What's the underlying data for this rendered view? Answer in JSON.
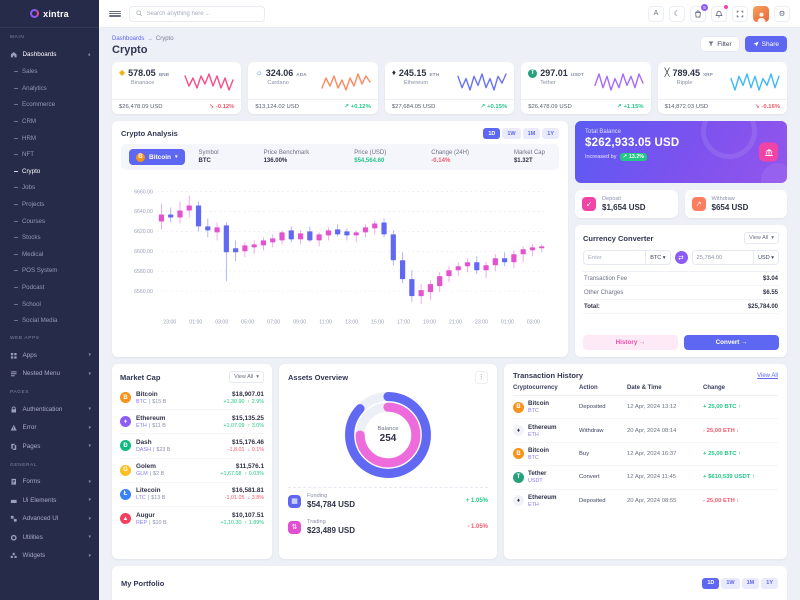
{
  "app": {
    "logo": "xintra",
    "search_placeholder": "Search anything here ...",
    "cart_badge": "5"
  },
  "page": {
    "breadcrumb": [
      "Dashboards",
      "Crypto"
    ],
    "title": "Crypto",
    "filter_label": "Filter",
    "share_label": "Share"
  },
  "sidebar": {
    "sections": [
      {
        "label": "MAIN",
        "items": [
          {
            "label": "Dashboards",
            "icon": "home-icon",
            "expanded": true,
            "active": true,
            "active_child": "Crypto",
            "children": [
              "Sales",
              "Analytics",
              "Ecommerce",
              "CRM",
              "HRM",
              "NFT",
              "Crypto",
              "Jobs",
              "Projects",
              "Courses",
              "Stocks",
              "Medical",
              "POS System",
              "Podcast",
              "School",
              "Social Media"
            ]
          }
        ]
      },
      {
        "label": "WEB APPS",
        "items": [
          {
            "label": "Apps",
            "icon": "apps-grid-icon"
          },
          {
            "label": "Nested Menu",
            "icon": "nested-menu-icon"
          }
        ]
      },
      {
        "label": "PAGES",
        "items": [
          {
            "label": "Authentication",
            "icon": "lock-icon"
          },
          {
            "label": "Error",
            "icon": "warning-icon"
          },
          {
            "label": "Pages",
            "icon": "pages-icon"
          }
        ]
      },
      {
        "label": "GENERAL",
        "items": [
          {
            "label": "Forms",
            "icon": "form-icon"
          },
          {
            "label": "Ui Elements",
            "icon": "ui-elements-icon"
          },
          {
            "label": "Advanced UI",
            "icon": "advanced-ui-icon"
          },
          {
            "label": "Utilities",
            "icon": "utilities-icon"
          },
          {
            "label": "Widgets",
            "icon": "widgets-icon"
          }
        ]
      }
    ]
  },
  "stat_cards": [
    {
      "value": "578.05",
      "symbol": "BNB",
      "name": "Binanace",
      "usd": "$26,478.09 USD",
      "change": "-0.12%",
      "dir": "down",
      "icon_glyph": "◆",
      "icon_color": "#f0b40f",
      "spark_color": "#f54f88",
      "spark": [
        9,
        4,
        8,
        3,
        9,
        5,
        10,
        4,
        9,
        3,
        8,
        2,
        7
      ]
    },
    {
      "value": "324.06",
      "symbol": "ADA",
      "name": "Cardano",
      "usd": "$13,124.02 USD",
      "change": "+0.12%",
      "dir": "up",
      "icon_glyph": "☼",
      "icon_color": "#3a6ff0",
      "spark_color": "#fd8a5f",
      "spark": [
        3,
        8,
        4,
        9,
        3,
        7,
        2,
        8,
        4,
        10,
        5,
        9,
        6
      ]
    },
    {
      "value": "245.15",
      "symbol": "ETH",
      "name": "Ethereum",
      "usd": "$27,684.05 USD",
      "change": "+0.15%",
      "dir": "up",
      "icon_glyph": "♦",
      "icon_color": "#2c2c35",
      "spark_color": "#6973f4",
      "spark": [
        8,
        3,
        7,
        2,
        8,
        4,
        9,
        3,
        7,
        2,
        8,
        5,
        9
      ]
    },
    {
      "value": "297.01",
      "symbol": "USDT",
      "name": "Tether",
      "usd": "$26,478.09 USD",
      "change": "+1.15%",
      "dir": "up",
      "icon_glyph": "T",
      "icon_color": "#ffffff",
      "icon_bg": "#26a17b",
      "spark_color": "#a56bf8",
      "spark": [
        4,
        9,
        3,
        8,
        2,
        7,
        3,
        9,
        4,
        8,
        3,
        9,
        5
      ]
    },
    {
      "value": "789.45",
      "symbol": "XRP",
      "name": "Ripple",
      "usd": "$14,872.03 USD",
      "change": "-0.16%",
      "dir": "down",
      "icon_glyph": "╳",
      "icon_color": "#23292f",
      "spark_color": "#3eb9f6",
      "spark": [
        7,
        2,
        8,
        4,
        9,
        3,
        8,
        2,
        7,
        4,
        9,
        3,
        8
      ]
    }
  ],
  "analysis": {
    "title": "Crypto Analysis",
    "coin": "Bitcoin",
    "coin_glyph": "B",
    "periods": [
      "1D",
      "1W",
      "1M",
      "1Y"
    ],
    "active_period": "1D",
    "stats": [
      {
        "label": "Symbol",
        "value": "BTC"
      },
      {
        "label": "Price Benchmark",
        "value": "136.00%"
      },
      {
        "label": "Price (USD)",
        "value": "$54,564.60",
        "color": "green"
      },
      {
        "label": "Change (24H)",
        "value": "-0.14%",
        "color": "red"
      },
      {
        "label": "Market Cap",
        "value": "$1.32T"
      }
    ]
  },
  "balance": {
    "label": "Total Balance",
    "value": "$262,933.05 USD",
    "increase_label": "Increased by",
    "increase_badge": "13.2%"
  },
  "deposit": {
    "label": "Deposit",
    "value": "$1,654 USD",
    "icon_glyph": "↙"
  },
  "withdraw": {
    "label": "Withdraw",
    "value": "$654 USD",
    "icon_glyph": "↗"
  },
  "converter": {
    "title": "Currency Converter",
    "view_all": "View All",
    "from_placeholder": "Enter",
    "from_currency": "BTC",
    "to_value": "25,784.00",
    "to_currency": "USD",
    "swap_glyph": "⇄",
    "fees": [
      {
        "label": "Transaction Fee",
        "value": "$3.04"
      },
      {
        "label": "Other Charges",
        "value": "$6.55"
      },
      {
        "label": "Total:",
        "value": "$25,784.00",
        "bold": true
      }
    ],
    "history_label": "History",
    "convert_label": "Convert"
  },
  "market_cap": {
    "title": "Market Cap",
    "view_all": "View All",
    "rows": [
      {
        "name": "Bitcoin",
        "symbol": "BTC",
        "cap": "$15 B",
        "value": "$18,907.01",
        "delta": "+1,30.90",
        "pct": "2.9%",
        "dir": "up",
        "icon_glyph": "B",
        "icon_bg": "#f7931a"
      },
      {
        "name": "Ethereum",
        "symbol": "ETH",
        "cap": "$11 B",
        "value": "$15,135.25",
        "delta": "+1,07.09",
        "pct": "3.0%",
        "dir": "up",
        "icon_glyph": "♦",
        "icon_bg": "#8b5cf6"
      },
      {
        "name": "Dash",
        "symbol": "DASH",
        "cap": "$23 B",
        "value": "$15,176.46",
        "delta": "-1,8.01",
        "pct": "0.1%",
        "dir": "down",
        "icon_glyph": "Ð",
        "icon_bg": "#10b981"
      },
      {
        "name": "Golem",
        "symbol": "GLM",
        "cap": "$2 B",
        "value": "$11,576.1",
        "delta": "+1,67.08",
        "pct": "0.03%",
        "dir": "up",
        "icon_glyph": "G",
        "icon_bg": "#fbbf24"
      },
      {
        "name": "Litecoin",
        "symbol": "LTC",
        "cap": "$13 B",
        "value": "$16,581.81",
        "delta": "-1,01.05",
        "pct": "3.8%",
        "dir": "down",
        "icon_glyph": "Ł",
        "icon_bg": "#3b82f6"
      },
      {
        "name": "Augur",
        "symbol": "REP",
        "cap": "$10 B",
        "value": "$10,107.51",
        "delta": "+1,10.30",
        "pct": "1.89%",
        "dir": "up",
        "icon_glyph": "▲",
        "icon_bg": "#f43f5e"
      }
    ]
  },
  "assets_overview": {
    "title": "Assets Overview",
    "rows": [
      {
        "label": "Funding",
        "value": "$54,784 USD",
        "change": "+ 1.05%",
        "dir": "up",
        "icon_glyph": "▦",
        "icon_bg": "#5e67f1"
      },
      {
        "label": "Trading",
        "value": "$23,489 USD",
        "change": "- 1.05%",
        "dir": "down",
        "icon_glyph": "⇅",
        "icon_bg": "#e24fd0"
      }
    ]
  },
  "transactions": {
    "title": "Transaction History",
    "view_all": "View All",
    "columns": [
      "Cryptocurrency",
      "Action",
      "Date & Time",
      "Change"
    ],
    "rows": [
      {
        "name": "Bitcoin",
        "symbol": "BTC",
        "action": "Deposited",
        "datetime": "12 Apr, 2024 13:12",
        "change": "+ 25,00 BTC",
        "dir": "up",
        "icon_glyph": "B",
        "icon_bg": "#f7931a"
      },
      {
        "name": "Ethereum",
        "symbol": "ETH",
        "action": "Withdraw",
        "datetime": "20 Apr, 2024 08:14",
        "change": "- 25,00 ETH",
        "dir": "down",
        "icon_glyph": "♦",
        "icon_bg": "#f1f2f8",
        "icon_color": "#2f3247"
      },
      {
        "name": "Bitcoin",
        "symbol": "BTC",
        "action": "Buy",
        "datetime": "12 Apr, 2024 16:37",
        "change": "+ 25,00 BTC",
        "dir": "up",
        "icon_glyph": "B",
        "icon_bg": "#f7931a"
      },
      {
        "name": "Tether",
        "symbol": "USDT",
        "action": "Convert",
        "datetime": "12 Apr, 2024 11:45",
        "change": "+ $610,539 USDT",
        "dir": "up",
        "icon_glyph": "T",
        "icon_bg": "#26a17b"
      },
      {
        "name": "Ethereum",
        "symbol": "ETH",
        "action": "Deposited",
        "datetime": "20 Apr, 2024 08:55",
        "change": "- 25,00 ETH",
        "dir": "down",
        "icon_glyph": "♦",
        "icon_bg": "#f1f2f8",
        "icon_color": "#2f3247"
      }
    ]
  },
  "portfolio": {
    "title": "My Portfolio"
  },
  "chart_data": [
    {
      "type": "candlestick",
      "title": "Crypto Analysis",
      "x_ticks": [
        "23:00",
        "01:00",
        "03:00",
        "05:00",
        "07:00",
        "09:00",
        "11:00",
        "13:00",
        "15:00",
        "17:00",
        "19:00",
        "21:00",
        "23:00",
        "01:00",
        "03:00"
      ],
      "y_ticks": [
        "6660.00",
        "6640.00",
        "6620.00",
        "6600.00",
        "6580.00",
        "6560.00"
      ],
      "ylim": [
        6542,
        6668
      ],
      "up_color": "#e352cf",
      "down_color": "#6168f1",
      "ohlc": [
        [
          6630,
          6648,
          6622,
          6637
        ],
        [
          6637,
          6644,
          6629,
          6634
        ],
        [
          6634,
          6650,
          6628,
          6641
        ],
        [
          6641,
          6656,
          6634,
          6646
        ],
        [
          6646,
          6650,
          6620,
          6625
        ],
        [
          6625,
          6633,
          6614,
          6621
        ],
        [
          6619,
          6629,
          6611,
          6624
        ],
        [
          6626,
          6629,
          6570,
          6599
        ],
        [
          6603,
          6611,
          6590,
          6599
        ],
        [
          6600,
          6609,
          6594,
          6606
        ],
        [
          6604,
          6611,
          6597,
          6607
        ],
        [
          6606,
          6614,
          6601,
          6611
        ],
        [
          6609,
          6617,
          6604,
          6613
        ],
        [
          6611,
          6621,
          6607,
          6619
        ],
        [
          6621,
          6625,
          6609,
          6612
        ],
        [
          6612,
          6621,
          6607,
          6618
        ],
        [
          6620,
          6625,
          6609,
          6611
        ],
        [
          6611,
          6619,
          6605,
          6617
        ],
        [
          6616,
          6624,
          6611,
          6621
        ],
        [
          6622,
          6627,
          6615,
          6617
        ],
        [
          6620,
          6623,
          6611,
          6616
        ],
        [
          6616,
          6621,
          6609,
          6619
        ],
        [
          6619,
          6627,
          6614,
          6624
        ],
        [
          6623,
          6631,
          6617,
          6628
        ],
        [
          6629,
          6633,
          6614,
          6617
        ],
        [
          6617,
          6621,
          6586,
          6591
        ],
        [
          6591,
          6599,
          6568,
          6572
        ],
        [
          6572,
          6581,
          6549,
          6555
        ],
        [
          6555,
          6567,
          6547,
          6561
        ],
        [
          6559,
          6571,
          6551,
          6567
        ],
        [
          6565,
          6579,
          6559,
          6575
        ],
        [
          6575,
          6585,
          6569,
          6581
        ],
        [
          6581,
          6589,
          6575,
          6585
        ],
        [
          6585,
          6593,
          6579,
          6589
        ],
        [
          6589,
          6595,
          6577,
          6581
        ],
        [
          6581,
          6589,
          6573,
          6586
        ],
        [
          6586,
          6597,
          6580,
          6593
        ],
        [
          6593,
          6599,
          6585,
          6589
        ],
        [
          6589,
          6601,
          6583,
          6597
        ],
        [
          6597,
          6605,
          6589,
          6602
        ],
        [
          6601,
          6607,
          6595,
          6604
        ],
        [
          6603,
          6607,
          6599,
          6605
        ]
      ]
    },
    {
      "type": "donut",
      "center_label": "Balance",
      "center_value": "254",
      "track_color": "#edeff6",
      "segments": [
        {
          "name": "Funding",
          "color": "#6168f1",
          "percent": 87
        },
        {
          "name": "Trading",
          "color": "#ee6bdc",
          "percent": 75
        }
      ]
    }
  ]
}
